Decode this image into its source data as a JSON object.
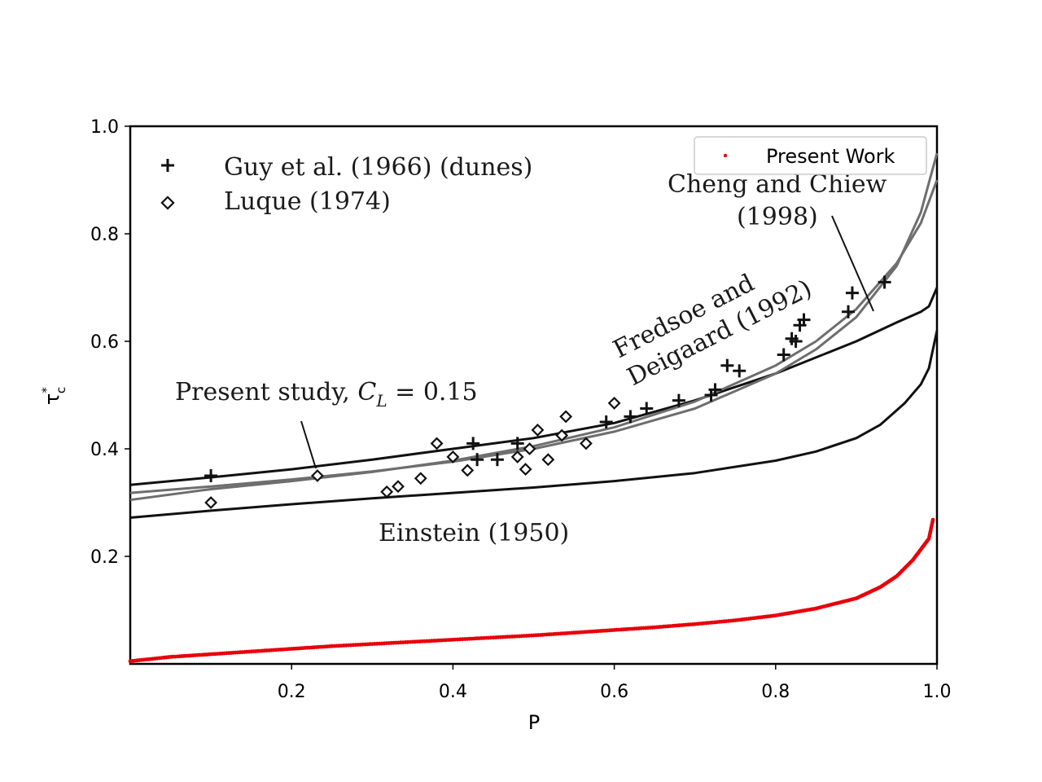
{
  "chart_data": {
    "type": "scatter",
    "title": "",
    "xlabel": "P",
    "ylabel": "τ*c",
    "xlim": [
      0.0,
      1.0
    ],
    "ylim": [
      0.0,
      1.0
    ],
    "x_ticks": [
      "0.2",
      "0.4",
      "0.6",
      "0.8",
      "1.0"
    ],
    "y_ticks": [
      "0.2",
      "0.4",
      "0.6",
      "0.8",
      "1.0"
    ],
    "legend": {
      "entries": [
        "Present Work"
      ],
      "location": "top-right"
    },
    "embedded_legend": [
      "Guy et al. (1966) (dunes)",
      "Luque (1974)"
    ],
    "annotations": {
      "present_study_prefix": "Present study, ",
      "present_study_symbol": "C",
      "present_study_sub": "L",
      "present_study_suffix": " = 0.15",
      "fredsoe_line1": "Fredsoe and",
      "fredsoe_line2": "Deigaard (1992)",
      "cheng_line1": "Cheng and Chiew",
      "cheng_line2": "(1998)",
      "einstein": "Einstein (1950)"
    },
    "series": [
      {
        "name": "Present Work",
        "kind": "points",
        "color": "#e8000b",
        "x": [
          0.0,
          0.05,
          0.1,
          0.15,
          0.2,
          0.25,
          0.3,
          0.35,
          0.4,
          0.45,
          0.5,
          0.55,
          0.6,
          0.65,
          0.7,
          0.75,
          0.8,
          0.85,
          0.9,
          0.93,
          0.95,
          0.97,
          0.98,
          0.99,
          0.995
        ],
        "y": [
          0.005,
          0.013,
          0.018,
          0.023,
          0.028,
          0.033,
          0.037,
          0.041,
          0.045,
          0.049,
          0.053,
          0.058,
          0.063,
          0.068,
          0.074,
          0.081,
          0.09,
          0.103,
          0.122,
          0.143,
          0.163,
          0.193,
          0.213,
          0.233,
          0.268
        ]
      },
      {
        "name": "Present study, CL = 0.15",
        "kind": "curve",
        "color": "#111111",
        "x": [
          0.0,
          0.1,
          0.2,
          0.3,
          0.4,
          0.5,
          0.6,
          0.7,
          0.8,
          0.9,
          0.95,
          0.98,
          0.99,
          1.0
        ],
        "y": [
          0.333,
          0.347,
          0.362,
          0.38,
          0.4,
          0.42,
          0.448,
          0.49,
          0.54,
          0.6,
          0.635,
          0.655,
          0.665,
          0.7
        ]
      },
      {
        "name": "Einstein (1950)",
        "kind": "curve",
        "color": "#111111",
        "x": [
          0.0,
          0.1,
          0.2,
          0.3,
          0.4,
          0.5,
          0.6,
          0.7,
          0.8,
          0.85,
          0.9,
          0.93,
          0.96,
          0.98,
          0.99,
          1.0
        ],
        "y": [
          0.272,
          0.285,
          0.297,
          0.308,
          0.318,
          0.328,
          0.34,
          0.355,
          0.378,
          0.395,
          0.42,
          0.445,
          0.485,
          0.52,
          0.55,
          0.62
        ]
      },
      {
        "name": "Fredsoe and Deigaard (1992)",
        "kind": "curve",
        "color": "#6e6e6e",
        "x": [
          0.0,
          0.1,
          0.2,
          0.3,
          0.4,
          0.5,
          0.6,
          0.7,
          0.8,
          0.85,
          0.9,
          0.95,
          0.98,
          1.0
        ],
        "y": [
          0.305,
          0.325,
          0.34,
          0.357,
          0.378,
          0.405,
          0.44,
          0.488,
          0.555,
          0.6,
          0.66,
          0.745,
          0.82,
          0.9
        ]
      },
      {
        "name": "Cheng and Chiew (1998)",
        "kind": "curve",
        "color": "#6e6e6e",
        "x": [
          0.0,
          0.1,
          0.2,
          0.3,
          0.4,
          0.5,
          0.6,
          0.7,
          0.8,
          0.85,
          0.9,
          0.95,
          0.98,
          1.0
        ],
        "y": [
          0.318,
          0.33,
          0.343,
          0.358,
          0.376,
          0.4,
          0.432,
          0.475,
          0.54,
          0.585,
          0.645,
          0.74,
          0.84,
          0.95
        ]
      },
      {
        "name": "Guy et al. (1966) (dunes)",
        "kind": "markers",
        "marker": "plus",
        "color": "#111111",
        "x": [
          0.1,
          0.425,
          0.43,
          0.455,
          0.48,
          0.59,
          0.62,
          0.64,
          0.68,
          0.72,
          0.725,
          0.74,
          0.755,
          0.81,
          0.82,
          0.825,
          0.83,
          0.835,
          0.89,
          0.895,
          0.935
        ],
        "y": [
          0.35,
          0.41,
          0.38,
          0.38,
          0.41,
          0.45,
          0.46,
          0.475,
          0.49,
          0.5,
          0.51,
          0.555,
          0.545,
          0.575,
          0.605,
          0.6,
          0.63,
          0.64,
          0.655,
          0.69,
          0.71
        ]
      },
      {
        "name": "Luque (1974)",
        "kind": "markers",
        "marker": "diamond",
        "color": "#111111",
        "x": [
          0.1,
          0.232,
          0.318,
          0.332,
          0.36,
          0.38,
          0.4,
          0.418,
          0.48,
          0.49,
          0.495,
          0.505,
          0.518,
          0.535,
          0.54,
          0.565,
          0.6
        ],
        "y": [
          0.3,
          0.35,
          0.32,
          0.33,
          0.345,
          0.41,
          0.385,
          0.36,
          0.385,
          0.362,
          0.4,
          0.435,
          0.38,
          0.425,
          0.46,
          0.41,
          0.485
        ]
      }
    ]
  }
}
